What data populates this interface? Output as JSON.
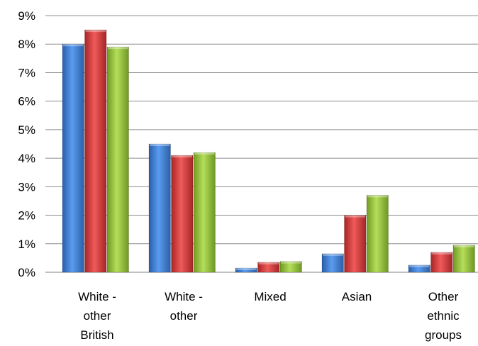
{
  "chart_data": {
    "type": "bar",
    "title": "",
    "xlabel": "",
    "ylabel": "",
    "ylim": [
      0,
      9
    ],
    "yticks": [
      "0%",
      "1%",
      "2%",
      "3%",
      "4%",
      "5%",
      "6%",
      "7%",
      "8%",
      "9%"
    ],
    "grid": true,
    "legend": "none",
    "categories": [
      [
        "White -",
        "other",
        "British"
      ],
      [
        "White -",
        "other"
      ],
      [
        "Mixed"
      ],
      [
        "Asian"
      ],
      [
        "Other",
        "ethnic",
        "groups"
      ]
    ],
    "series": [
      {
        "color": "#3b78d0",
        "values": [
          8.0,
          4.5,
          0.15,
          0.65,
          0.25
        ]
      },
      {
        "color": "#d93a3a",
        "values": [
          8.5,
          4.1,
          0.35,
          2.0,
          0.7
        ]
      },
      {
        "color": "#96c23f",
        "values": [
          7.9,
          4.2,
          0.38,
          2.7,
          0.95
        ]
      }
    ]
  }
}
